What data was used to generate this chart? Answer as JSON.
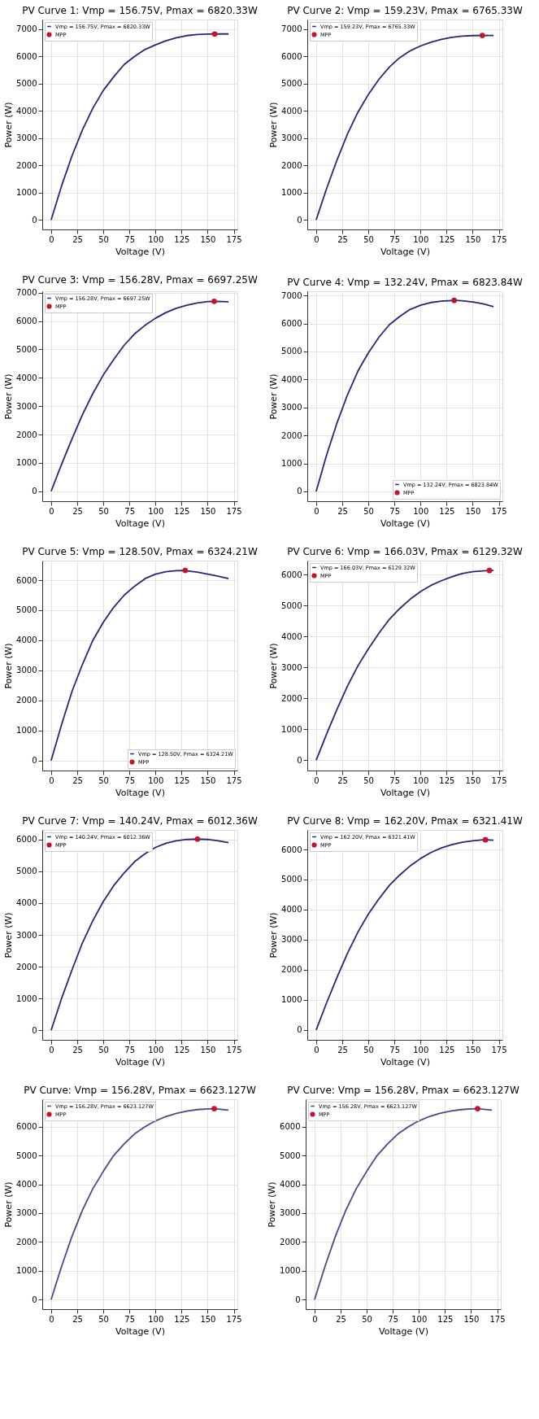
{
  "chart_data": [
    {
      "type": "line",
      "title": "PV Curve 1: Vmp = 156.75V, Pmax = 6820.33W",
      "xlabel": "Voltage (V)",
      "ylabel": "Power (W)",
      "xlim": [
        -8.5,
        178.5
      ],
      "xticks": [
        0,
        25,
        50,
        75,
        100,
        125,
        150,
        175
      ],
      "ylim": [
        -350,
        7350
      ],
      "yticks": [
        0,
        1000,
        2000,
        3000,
        4000,
        5000,
        6000,
        7000
      ],
      "grid": true,
      "legend": "top left",
      "series": [
        {
          "name": "Vmp = 156.75V, Pmax = 6820.33W",
          "type": "line",
          "marker": "none",
          "color": "#27277a",
          "x": [
            0,
            10,
            20,
            30,
            40,
            50,
            60,
            70,
            80,
            90,
            100,
            110,
            120,
            130,
            140,
            150,
            156.75,
            170
          ],
          "values": [
            0,
            1250,
            2350,
            3300,
            4100,
            4750,
            5250,
            5700,
            6000,
            6250,
            6420,
            6570,
            6680,
            6760,
            6800,
            6815,
            6820,
            6820
          ]
        },
        {
          "name": "MPP",
          "type": "scatter",
          "marker": "circle",
          "color": "#c8102e",
          "x": [
            156.75
          ],
          "values": [
            6820.33
          ]
        }
      ]
    },
    {
      "type": "line",
      "title": "PV Curve 2: Vmp = 159.23V, Pmax = 6765.33W",
      "xlabel": "Voltage (V)",
      "ylabel": "Power (W)",
      "xlim": [
        -8.5,
        178.5
      ],
      "xticks": [
        0,
        25,
        50,
        75,
        100,
        125,
        150,
        175
      ],
      "ylim": [
        -350,
        7350
      ],
      "yticks": [
        0,
        1000,
        2000,
        3000,
        4000,
        5000,
        6000,
        7000
      ],
      "grid": true,
      "legend": "top left",
      "series": [
        {
          "name": "Vmp = 159.23V, Pmax = 6765.33W",
          "type": "line",
          "marker": "none",
          "color": "#27277a",
          "x": [
            0,
            10,
            20,
            30,
            40,
            50,
            60,
            70,
            80,
            90,
            100,
            110,
            120,
            130,
            140,
            150,
            159.23,
            170
          ],
          "values": [
            0,
            1150,
            2200,
            3150,
            3950,
            4600,
            5150,
            5600,
            5950,
            6200,
            6380,
            6520,
            6620,
            6700,
            6740,
            6760,
            6765,
            6765
          ]
        },
        {
          "name": "MPP",
          "type": "scatter",
          "marker": "circle",
          "color": "#c8102e",
          "x": [
            159.23
          ],
          "values": [
            6765.33
          ]
        }
      ]
    },
    {
      "type": "line",
      "title": "PV Curve 3: Vmp = 156.28V, Pmax = 6697.25W",
      "xlabel": "Voltage (V)",
      "ylabel": "Power (W)",
      "xlim": [
        -8.5,
        178.5
      ],
      "xticks": [
        0,
        25,
        50,
        75,
        100,
        125,
        150,
        175
      ],
      "ylim": [
        -350,
        7050
      ],
      "yticks": [
        0,
        1000,
        2000,
        3000,
        4000,
        5000,
        6000,
        7000
      ],
      "grid": true,
      "legend": "top left",
      "series": [
        {
          "name": "Vmp = 156.28V, Pmax = 6697.25W",
          "type": "line",
          "marker": "none",
          "color": "#27277a",
          "x": [
            0,
            10,
            20,
            30,
            40,
            50,
            60,
            70,
            80,
            90,
            100,
            110,
            120,
            130,
            140,
            150,
            156.28,
            170
          ],
          "values": [
            0,
            950,
            1850,
            2700,
            3450,
            4100,
            4650,
            5150,
            5550,
            5850,
            6100,
            6300,
            6450,
            6560,
            6640,
            6690,
            6697,
            6680
          ]
        },
        {
          "name": "MPP",
          "type": "scatter",
          "marker": "circle",
          "color": "#c8102e",
          "x": [
            156.28
          ],
          "values": [
            6697.25
          ]
        }
      ]
    },
    {
      "type": "line",
      "title": "PV Curve 4: Vmp = 132.24V, Pmax = 6823.84W",
      "xlabel": "Voltage (V)",
      "ylabel": "Power (W)",
      "xlim": [
        -8.5,
        178.5
      ],
      "xticks": [
        0,
        25,
        50,
        75,
        100,
        125,
        150,
        175
      ],
      "ylim": [
        -350,
        7150
      ],
      "yticks": [
        0,
        1000,
        2000,
        3000,
        4000,
        5000,
        6000,
        7000
      ],
      "grid": true,
      "legend": "bottom right",
      "series": [
        {
          "name": "Vmp = 132.24V, Pmax = 6823.84W",
          "type": "line",
          "marker": "none",
          "color": "#27277a",
          "x": [
            0,
            10,
            20,
            30,
            40,
            50,
            60,
            70,
            80,
            90,
            100,
            110,
            120,
            130,
            132.24,
            140,
            150,
            160,
            170
          ],
          "values": [
            0,
            1300,
            2450,
            3450,
            4300,
            4950,
            5500,
            5950,
            6250,
            6500,
            6650,
            6750,
            6800,
            6822,
            6824,
            6810,
            6770,
            6700,
            6600
          ]
        },
        {
          "name": "MPP",
          "type": "scatter",
          "marker": "circle",
          "color": "#c8102e",
          "x": [
            132.24
          ],
          "values": [
            6823.84
          ]
        }
      ]
    },
    {
      "type": "line",
      "title": "PV Curve 5: Vmp = 128.50V, Pmax = 6324.21W",
      "xlabel": "Voltage (V)",
      "ylabel": "Power (W)",
      "xlim": [
        -8.5,
        178.5
      ],
      "xticks": [
        0,
        25,
        50,
        75,
        100,
        125,
        150,
        175
      ],
      "ylim": [
        -330,
        6650
      ],
      "yticks": [
        0,
        1000,
        2000,
        3000,
        4000,
        5000,
        6000
      ],
      "grid": true,
      "legend": "bottom right",
      "series": [
        {
          "name": "Vmp = 128.50V, Pmax = 6324.21W",
          "type": "line",
          "marker": "none",
          "color": "#27277a",
          "x": [
            0,
            10,
            20,
            30,
            40,
            50,
            60,
            70,
            80,
            90,
            100,
            110,
            120,
            128.5,
            130,
            140,
            150,
            160,
            170
          ],
          "values": [
            0,
            1200,
            2300,
            3200,
            4000,
            4600,
            5100,
            5500,
            5800,
            6050,
            6200,
            6280,
            6315,
            6324,
            6310,
            6270,
            6200,
            6130,
            6050
          ]
        },
        {
          "name": "MPP",
          "type": "scatter",
          "marker": "circle",
          "color": "#c8102e",
          "x": [
            128.5
          ],
          "values": [
            6324.21
          ]
        }
      ]
    },
    {
      "type": "line",
      "title": "PV Curve 6: Vmp = 166.03V, Pmax = 6129.32W",
      "xlabel": "Voltage (V)",
      "ylabel": "Power (W)",
      "xlim": [
        -8.5,
        178.5
      ],
      "xticks": [
        0,
        25,
        50,
        75,
        100,
        125,
        150,
        175
      ],
      "ylim": [
        -330,
        6450
      ],
      "yticks": [
        0,
        1000,
        2000,
        3000,
        4000,
        5000,
        6000
      ],
      "grid": true,
      "legend": "top left",
      "series": [
        {
          "name": "Vmp = 166.03V, Pmax = 6129.32W",
          "type": "line",
          "marker": "none",
          "color": "#27277a",
          "x": [
            0,
            10,
            20,
            30,
            40,
            50,
            60,
            70,
            80,
            90,
            100,
            110,
            120,
            130,
            140,
            150,
            160,
            166.03,
            170
          ],
          "values": [
            0,
            850,
            1650,
            2400,
            3050,
            3600,
            4100,
            4550,
            4900,
            5200,
            5450,
            5650,
            5800,
            5930,
            6030,
            6090,
            6120,
            6129,
            6129
          ]
        },
        {
          "name": "MPP",
          "type": "scatter",
          "marker": "circle",
          "color": "#c8102e",
          "x": [
            166.03
          ],
          "values": [
            6129.32
          ]
        }
      ]
    },
    {
      "type": "line",
      "title": "PV Curve 7: Vmp = 140.24V, Pmax = 6012.36W",
      "xlabel": "Voltage (V)",
      "ylabel": "Power (W)",
      "xlim": [
        -8.5,
        178.5
      ],
      "xticks": [
        0,
        25,
        50,
        75,
        100,
        125,
        150,
        175
      ],
      "ylim": [
        -300,
        6300
      ],
      "yticks": [
        0,
        1000,
        2000,
        3000,
        4000,
        5000,
        6000
      ],
      "grid": true,
      "legend": "top left",
      "series": [
        {
          "name": "Vmp = 140.24V, Pmax = 6012.36W",
          "type": "line",
          "marker": "none",
          "color": "#27277a",
          "x": [
            0,
            10,
            20,
            30,
            40,
            50,
            60,
            70,
            80,
            90,
            100,
            110,
            120,
            130,
            140.24,
            150,
            160,
            170
          ],
          "values": [
            0,
            1000,
            1900,
            2750,
            3450,
            4050,
            4550,
            4950,
            5300,
            5550,
            5750,
            5880,
            5960,
            6000,
            6012,
            6000,
            5960,
            5900
          ]
        },
        {
          "name": "MPP",
          "type": "scatter",
          "marker": "circle",
          "color": "#c8102e",
          "x": [
            140.24
          ],
          "values": [
            6012.36
          ]
        }
      ]
    },
    {
      "type": "line",
      "title": "PV Curve 8: Vmp = 162.20V, Pmax = 6321.41W",
      "xlabel": "Voltage (V)",
      "ylabel": "Power (W)",
      "xlim": [
        -8.5,
        178.5
      ],
      "xticks": [
        0,
        25,
        50,
        75,
        100,
        125,
        150,
        175
      ],
      "ylim": [
        -330,
        6650
      ],
      "yticks": [
        0,
        1000,
        2000,
        3000,
        4000,
        5000,
        6000
      ],
      "grid": true,
      "legend": "top left",
      "series": [
        {
          "name": "Vmp = 162.20V, Pmax = 6321.41W",
          "type": "line",
          "marker": "none",
          "color": "#27277a",
          "x": [
            0,
            10,
            20,
            30,
            40,
            50,
            60,
            70,
            80,
            90,
            100,
            110,
            120,
            130,
            140,
            150,
            160,
            162.2,
            170
          ],
          "values": [
            0,
            900,
            1750,
            2550,
            3250,
            3850,
            4350,
            4800,
            5150,
            5450,
            5700,
            5900,
            6050,
            6160,
            6240,
            6290,
            6320,
            6321,
            6310
          ]
        },
        {
          "name": "MPP",
          "type": "scatter",
          "marker": "circle",
          "color": "#c8102e",
          "x": [
            162.2
          ],
          "values": [
            6321.41
          ]
        }
      ]
    },
    {
      "type": "line",
      "title": "PV Curve: Vmp = 156.28V, Pmax = 6623.127W",
      "xlabel": "Voltage (V)",
      "ylabel": "Power (W)",
      "xlim": [
        -8.5,
        178.5
      ],
      "xticks": [
        0,
        25,
        50,
        75,
        100,
        125,
        150,
        175
      ],
      "ylim": [
        -330,
        6950
      ],
      "yticks": [
        0,
        1000,
        2000,
        3000,
        4000,
        5000,
        6000
      ],
      "grid": true,
      "legend": "top left",
      "series": [
        {
          "name": "Vmp = 156.28V, Pmax = 6623.127W",
          "type": "line",
          "marker": "none",
          "color": "#4a4a8a",
          "x": [
            0,
            10,
            20,
            30,
            40,
            50,
            60,
            70,
            80,
            90,
            100,
            110,
            120,
            130,
            140,
            150,
            156.28,
            170
          ],
          "values": [
            0,
            1150,
            2200,
            3100,
            3850,
            4450,
            5000,
            5400,
            5750,
            6000,
            6200,
            6350,
            6460,
            6540,
            6590,
            6615,
            6623,
            6570
          ]
        },
        {
          "name": "MPP",
          "type": "scatter",
          "marker": "circle",
          "color": "#c8102e",
          "x": [
            156.28
          ],
          "values": [
            6623.127
          ]
        }
      ]
    },
    {
      "type": "line",
      "title": "PV Curve: Vmp = 156.28V, Pmax = 6623.127W",
      "xlabel": "Voltage (V)",
      "ylabel": "Power (W)",
      "xlim": [
        -8.5,
        178.5
      ],
      "xticks": [
        0,
        25,
        50,
        75,
        100,
        125,
        150,
        175
      ],
      "ylim": [
        -330,
        6950
      ],
      "yticks": [
        0,
        1000,
        2000,
        3000,
        4000,
        5000,
        6000
      ],
      "grid": true,
      "legend": "top left",
      "series": [
        {
          "name": "Vmp = 156.28V, Pmax = 6623.127W",
          "type": "line",
          "marker": "none",
          "color": "#4a4a8a",
          "x": [
            0,
            10,
            20,
            30,
            40,
            50,
            60,
            70,
            80,
            90,
            100,
            110,
            120,
            130,
            140,
            150,
            156.28,
            170
          ],
          "values": [
            0,
            1150,
            2200,
            3100,
            3850,
            4450,
            5000,
            5400,
            5750,
            6000,
            6200,
            6350,
            6460,
            6540,
            6590,
            6615,
            6623,
            6570
          ]
        },
        {
          "name": "MPP",
          "type": "scatter",
          "marker": "circle",
          "color": "#c8102e",
          "x": [
            156.28
          ],
          "values": [
            6623.127
          ]
        }
      ]
    }
  ]
}
